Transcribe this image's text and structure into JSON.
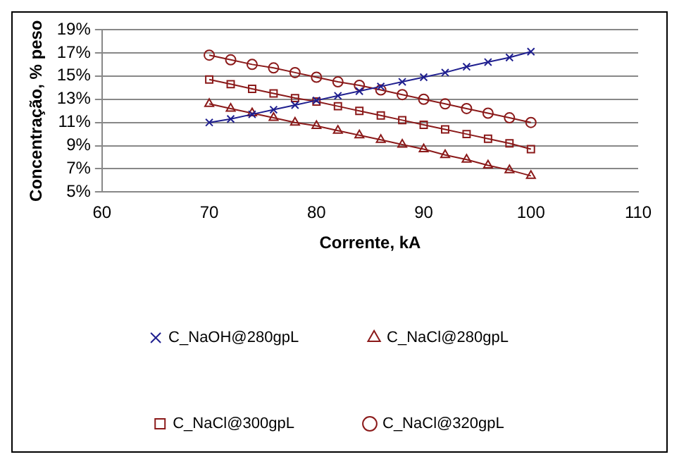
{
  "chart_data": {
    "type": "line",
    "xlabel": "Corrente, kA",
    "ylabel": "Concentração, % peso",
    "x": [
      70,
      72,
      74,
      76,
      78,
      80,
      82,
      84,
      86,
      88,
      90,
      92,
      94,
      96,
      98,
      100
    ],
    "series": [
      {
        "name": "C_NaOH@280gpL",
        "color": "#1f1f8f",
        "marker": "cross",
        "values": [
          11.0,
          11.3,
          11.7,
          12.1,
          12.5,
          12.9,
          13.3,
          13.7,
          14.1,
          14.5,
          14.9,
          15.3,
          15.8,
          16.2,
          16.6,
          17.1
        ]
      },
      {
        "name": "C_NaCl@280gpL",
        "color": "#8b1a1a",
        "marker": "triangle",
        "values": [
          12.6,
          12.2,
          11.8,
          11.4,
          11.0,
          10.7,
          10.3,
          9.9,
          9.5,
          9.1,
          8.7,
          8.2,
          7.8,
          7.3,
          6.9,
          6.4
        ]
      },
      {
        "name": "C_NaCl@300gpL",
        "color": "#8b1a1a",
        "marker": "square",
        "values": [
          14.7,
          14.3,
          13.9,
          13.5,
          13.1,
          12.8,
          12.4,
          12.0,
          11.6,
          11.2,
          10.8,
          10.4,
          10.0,
          9.6,
          9.2,
          8.7
        ]
      },
      {
        "name": "C_NaCl@320gpL",
        "color": "#8b1a1a",
        "marker": "circle",
        "values": [
          16.8,
          16.4,
          16.0,
          15.7,
          15.3,
          14.9,
          14.5,
          14.2,
          13.8,
          13.4,
          13.0,
          12.6,
          12.2,
          11.8,
          11.4,
          11.0
        ]
      }
    ],
    "xlim": [
      60,
      110
    ],
    "xticks": [
      60,
      70,
      80,
      90,
      100,
      110
    ],
    "ylim": [
      5,
      19
    ],
    "yticks": [
      {
        "value": 5,
        "label": "5%"
      },
      {
        "value": 7,
        "label": "7%"
      },
      {
        "value": 9,
        "label": "9%"
      },
      {
        "value": 11,
        "label": "11%"
      },
      {
        "value": 13,
        "label": "13%"
      },
      {
        "value": 15,
        "label": "15%"
      },
      {
        "value": 17,
        "label": "17%"
      },
      {
        "value": 19,
        "label": "19%"
      }
    ],
    "grid": "y",
    "legend": "bottom",
    "line_style": "solid"
  }
}
